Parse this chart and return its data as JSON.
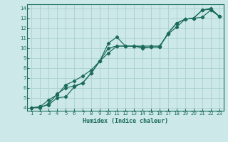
{
  "title": "",
  "xlabel": "Humidex (Indice chaleur)",
  "ylabel": "",
  "bg_color": "#cce8e8",
  "grid_color": "#aacfcf",
  "line_color": "#1a6b5a",
  "xlim": [
    0.5,
    23.5
  ],
  "ylim": [
    3.7,
    14.4
  ],
  "xticks": [
    1,
    2,
    3,
    4,
    5,
    6,
    7,
    8,
    9,
    10,
    11,
    12,
    13,
    14,
    15,
    16,
    17,
    18,
    19,
    20,
    21,
    22,
    23
  ],
  "yticks": [
    4,
    5,
    6,
    7,
    8,
    9,
    10,
    11,
    12,
    13,
    14
  ],
  "line1_x": [
    1,
    2,
    3,
    4,
    5,
    6,
    7,
    8,
    9,
    10,
    11,
    12,
    13,
    14,
    15,
    16,
    17,
    18,
    19,
    20,
    21,
    22,
    23
  ],
  "line1_y": [
    4.0,
    4.1,
    4.8,
    5.3,
    6.3,
    6.7,
    7.2,
    7.8,
    8.7,
    9.5,
    10.2,
    10.2,
    10.2,
    10.2,
    10.2,
    10.2,
    11.4,
    12.1,
    12.9,
    13.0,
    13.1,
    13.8,
    13.2
  ],
  "line2_x": [
    1,
    2,
    3,
    4,
    5,
    6,
    7,
    8,
    9,
    10,
    11,
    12,
    13,
    14,
    15,
    16,
    17,
    18,
    19,
    20,
    21,
    22,
    23
  ],
  "line2_y": [
    4.0,
    4.1,
    4.3,
    5.0,
    5.1,
    6.1,
    6.5,
    7.5,
    8.7,
    10.5,
    11.1,
    10.2,
    10.2,
    10.1,
    10.1,
    10.1,
    11.5,
    12.5,
    12.9,
    13.0,
    13.8,
    14.0,
    13.2
  ],
  "line3_x": [
    1,
    2,
    3,
    4,
    5,
    6,
    7,
    8,
    9,
    10,
    11,
    12,
    13,
    14,
    15,
    16,
    17,
    18,
    19,
    20,
    21,
    22,
    23
  ],
  "line3_y": [
    4.0,
    4.0,
    4.4,
    5.4,
    6.0,
    6.2,
    6.5,
    7.5,
    8.7,
    10.0,
    10.2,
    10.2,
    10.2,
    10.0,
    10.1,
    10.1,
    11.5,
    12.5,
    12.9,
    13.0,
    13.8,
    13.9,
    13.2
  ]
}
